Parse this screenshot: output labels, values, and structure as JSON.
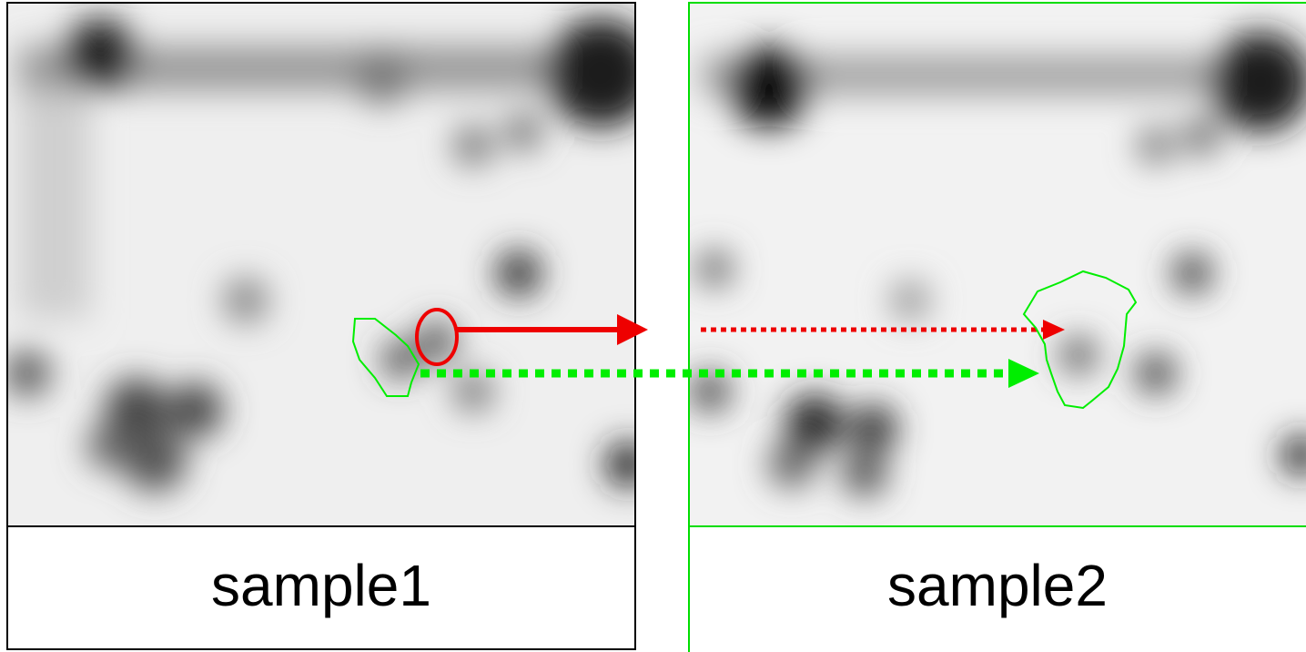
{
  "panels": [
    {
      "label": "sample1"
    },
    {
      "label": "sample2"
    }
  ]
}
